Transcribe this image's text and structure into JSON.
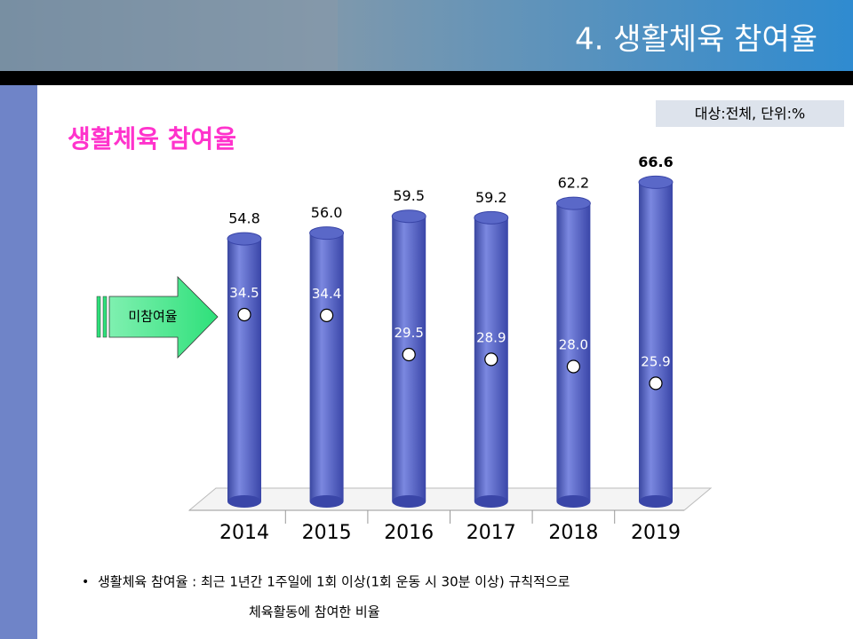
{
  "header": {
    "title": "4. 생활체육 참여율"
  },
  "unit_note": "대상:전체, 단위:%",
  "chart_data": {
    "type": "cylinder",
    "title": "생활체육 참여율",
    "categories": [
      "2014",
      "2015",
      "2016",
      "2017",
      "2018",
      "2019"
    ],
    "series": [
      {
        "color": "#4f5fc0",
        "values": [
          54.8,
          56.0,
          59.5,
          59.2,
          62.2,
          66.6
        ],
        "value_labels": [
          "54.8",
          "56.0",
          "59.5",
          "59.2",
          "62.2",
          "66.6"
        ]
      },
      {
        "name": "미참여율",
        "color": "#ffffff",
        "values": [
          34.5,
          34.4,
          29.5,
          28.9,
          28.0,
          25.9
        ],
        "value_labels": [
          "34.5",
          "34.4",
          "29.5",
          "28.9",
          "28.0",
          "25.9"
        ]
      }
    ]
  },
  "footnote": [
    "생활체육 참여율 : 최근 1년간 1주일에 1회 이상(1회 운동 시 30분 이상) 규칙적으로",
    "체육활동에 참여한 비율"
  ]
}
